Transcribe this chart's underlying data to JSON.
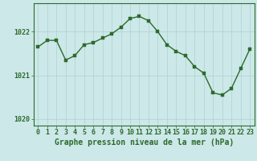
{
  "x": [
    0,
    1,
    2,
    3,
    4,
    5,
    6,
    7,
    8,
    9,
    10,
    11,
    12,
    13,
    14,
    15,
    16,
    17,
    18,
    19,
    20,
    21,
    22,
    23
  ],
  "y": [
    1021.65,
    1021.8,
    1021.8,
    1021.35,
    1021.45,
    1021.7,
    1021.75,
    1021.85,
    1021.95,
    1022.1,
    1022.3,
    1022.35,
    1022.25,
    1022.0,
    1021.7,
    1021.55,
    1021.45,
    1021.2,
    1021.05,
    1020.6,
    1020.55,
    1020.7,
    1021.15,
    1021.6
  ],
  "line_color": "#2d6a2d",
  "marker_color": "#2d6a2d",
  "bg_color": "#cce8e8",
  "grid_color": "#b0d0d0",
  "axis_color": "#2d6a2d",
  "border_color": "#2d6a2d",
  "xlabel": "Graphe pression niveau de la mer (hPa)",
  "xlabel_fontsize": 7,
  "ylim": [
    1019.85,
    1022.65
  ],
  "yticks": [
    1020,
    1021,
    1022
  ],
  "xticks": [
    0,
    1,
    2,
    3,
    4,
    5,
    6,
    7,
    8,
    9,
    10,
    11,
    12,
    13,
    14,
    15,
    16,
    17,
    18,
    19,
    20,
    21,
    22,
    23
  ],
  "tick_fontsize": 6,
  "linewidth": 1.0,
  "markersize": 2.5
}
